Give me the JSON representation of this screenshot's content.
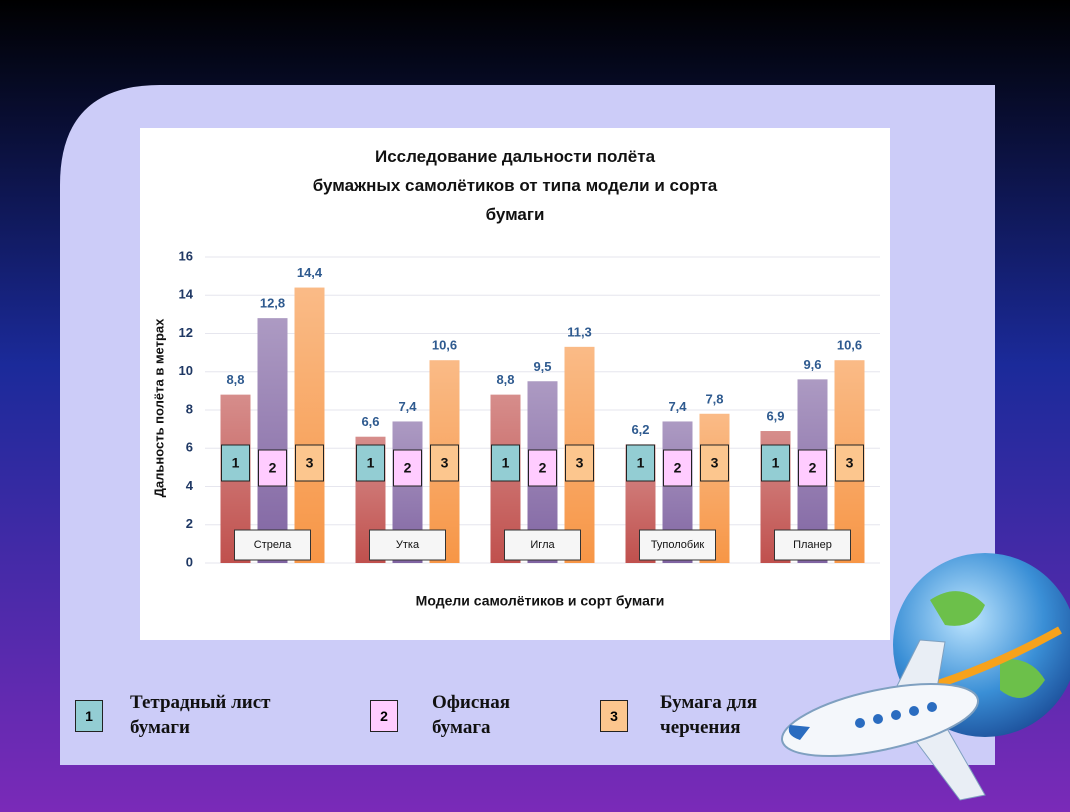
{
  "chart_data": {
    "type": "bar",
    "title": [
      "Исследование дальности полёта",
      "бумажных самолётиков от типа модели и сорта",
      "бумаги"
    ],
    "y_label": "Дальность полёта в метрах",
    "x_label": "Модели самолётиков и сорт бумаги",
    "categories": [
      "Стрела",
      "Утка",
      "Игла",
      "Туполобик",
      "Планер"
    ],
    "series": [
      {
        "name": "Тетрадный лист бумаги",
        "key": "1",
        "color": "#c0504d",
        "key_color": "#93cdd3",
        "values": [
          8.8,
          6.6,
          8.8,
          6.2,
          6.9
        ],
        "value_labels": [
          "8,8",
          "6,6",
          "8,8",
          "6,2",
          "6,9"
        ]
      },
      {
        "name": "Офисная бумага",
        "key": "2",
        "color": "#8064a2",
        "key_color": "#ffccff",
        "values": [
          12.8,
          7.4,
          9.5,
          7.4,
          9.6
        ],
        "value_labels": [
          "12,8",
          "7,4",
          "9,5",
          "7,4",
          "9,6"
        ]
      },
      {
        "name": "Бумага для черчения",
        "key": "3",
        "color": "#f79646",
        "key_color": "#fcc68e",
        "values": [
          14.4,
          10.6,
          11.3,
          7.8,
          10.6
        ],
        "value_labels": [
          "14,4",
          "10,6",
          "11,3",
          "7,8",
          "10,6"
        ]
      }
    ],
    "ylim": [
      0,
      16
    ],
    "yticks": [
      0,
      2,
      4,
      6,
      8,
      10,
      12,
      14,
      16
    ],
    "grid": true
  }
}
